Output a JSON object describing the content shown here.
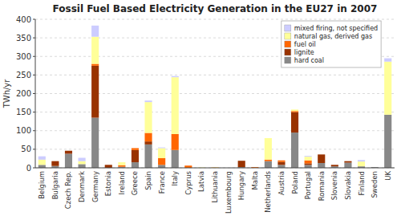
{
  "chart_data": {
    "type": "bar",
    "stacked": true,
    "title": "Fossil Fuel Based Electricity Generation in the EU27 in 2007",
    "ylabel": "TWh/yr",
    "categories": [
      "Belgium",
      "Bulgaria",
      "Czech Rep.",
      "Denmark",
      "Germany",
      "Estonia",
      "Ireland",
      "Greece",
      "Spain",
      "France",
      "Italy",
      "Cyprus",
      "Latvia",
      "Lithuania",
      "Luxembourg",
      "Hungary",
      "Malta",
      "Netherlands",
      "Austria",
      "Poland",
      "Portugal",
      "Romania",
      "Slovenia",
      "Slovakia",
      "Finland",
      "Sweden",
      "UK"
    ],
    "series": [
      {
        "name": "hard coal",
        "color": "#888888",
        "values": [
          8,
          5,
          38,
          10,
          135,
          0,
          3,
          15,
          63,
          8,
          48,
          0,
          0,
          0,
          0,
          2,
          0,
          18,
          8,
          95,
          8,
          13,
          4,
          14,
          4,
          2,
          143
        ]
      },
      {
        "name": "lignite",
        "color": "#993300",
        "values": [
          0,
          13,
          8,
          0,
          140,
          8,
          0,
          33,
          8,
          0,
          0,
          0,
          0,
          0,
          0,
          17,
          0,
          0,
          8,
          55,
          4,
          23,
          4,
          4,
          0,
          0,
          0
        ]
      },
      {
        "name": "fuel oil",
        "color": "#FF6600",
        "values": [
          0,
          0,
          0,
          0,
          5,
          0,
          4,
          5,
          23,
          18,
          43,
          6,
          0,
          1,
          0,
          0,
          2,
          4,
          4,
          3,
          8,
          0,
          0,
          0,
          0,
          0,
          0
        ]
      },
      {
        "name": "natural gas, derived gas",
        "color": "#FFFF99",
        "values": [
          14,
          0,
          0,
          8,
          73,
          0,
          8,
          0,
          83,
          27,
          153,
          0,
          1,
          1,
          0,
          0,
          0,
          58,
          0,
          4,
          10,
          0,
          0,
          0,
          13,
          0,
          143
        ]
      },
      {
        "name": "mixed firing, not specified",
        "color": "#CCCCFF",
        "values": [
          9,
          0,
          0,
          9,
          30,
          0,
          0,
          0,
          4,
          2,
          3,
          0,
          0,
          0,
          0,
          0,
          0,
          0,
          0,
          0,
          2,
          0,
          0,
          0,
          4,
          0,
          9
        ]
      }
    ],
    "ylim": [
      0,
      400
    ],
    "yticks": [
      0,
      50,
      100,
      150,
      200,
      250,
      300,
      350,
      400
    ],
    "grid": true,
    "legend": "upper right"
  }
}
